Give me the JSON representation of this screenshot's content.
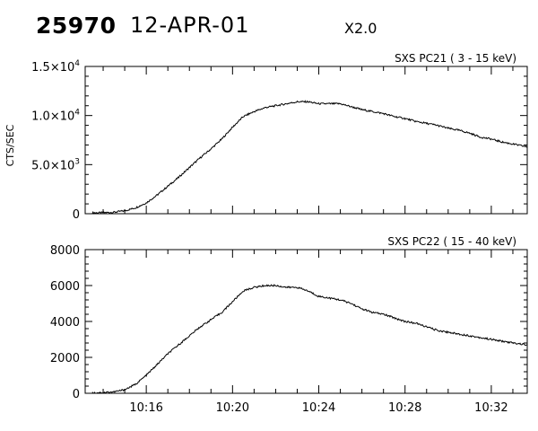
{
  "header": {
    "event_id": "25970",
    "date": "12-APR-01",
    "flare_class": "X2.0"
  },
  "chart_data": [
    {
      "type": "line",
      "title": "SXS PC21  (  3 - 15 keV)",
      "ylabel": "CTS/SEC",
      "xlabel": "",
      "xlim": [
        "10:13:10",
        "10:33:40"
      ],
      "ylim": [
        0,
        15000
      ],
      "y_ticks": [
        0,
        5000,
        10000,
        15000
      ],
      "y_tick_labels": [
        {
          "mant": "0",
          "exp": ""
        },
        {
          "mant": "5.0×10",
          "exp": "3"
        },
        {
          "mant": "1.0×10",
          "exp": "4"
        },
        {
          "mant": "1.5×10",
          "exp": "4"
        }
      ],
      "x_ticks": [
        "10:16",
        "10:20",
        "10:24",
        "10:28",
        "10:32"
      ],
      "x_tick_labels": [],
      "grid": false,
      "x": [
        "10:13:30",
        "10:14:00",
        "10:14:30",
        "10:15:00",
        "10:15:30",
        "10:16:00",
        "10:16:30",
        "10:17:00",
        "10:17:30",
        "10:18:00",
        "10:18:30",
        "10:19:00",
        "10:19:30",
        "10:20:00",
        "10:20:30",
        "10:21:00",
        "10:21:30",
        "10:22:00",
        "10:22:30",
        "10:23:00",
        "10:23:30",
        "10:24:00",
        "10:24:30",
        "10:25:00",
        "10:25:30",
        "10:26:00",
        "10:26:30",
        "10:27:00",
        "10:27:30",
        "10:28:00",
        "10:28:30",
        "10:29:00",
        "10:29:30",
        "10:30:00",
        "10:30:30",
        "10:31:00",
        "10:31:30",
        "10:32:00",
        "10:32:30",
        "10:33:00",
        "10:33:40"
      ],
      "values": [
        100,
        100,
        150,
        300,
        600,
        1100,
        1900,
        2800,
        3700,
        4700,
        5700,
        6600,
        7600,
        8800,
        9900,
        10400,
        10800,
        11000,
        11200,
        11400,
        11400,
        11200,
        11200,
        11200,
        10900,
        10600,
        10400,
        10200,
        9900,
        9700,
        9400,
        9200,
        9000,
        8700,
        8500,
        8200,
        7800,
        7600,
        7300,
        7100,
        6800
      ]
    },
    {
      "type": "line",
      "title": "SXS PC22  ( 15 - 40 keV)",
      "ylabel": "",
      "xlabel": "",
      "xlim": [
        "10:13:10",
        "10:33:40"
      ],
      "ylim": [
        0,
        8000
      ],
      "y_ticks": [
        0,
        2000,
        4000,
        6000,
        8000
      ],
      "y_tick_labels": [
        {
          "mant": "0",
          "exp": ""
        },
        {
          "mant": "2000",
          "exp": ""
        },
        {
          "mant": "4000",
          "exp": ""
        },
        {
          "mant": "6000",
          "exp": ""
        },
        {
          "mant": "8000",
          "exp": ""
        }
      ],
      "x_ticks": [
        "10:16",
        "10:20",
        "10:24",
        "10:28",
        "10:32"
      ],
      "x_tick_labels": [
        "10:16",
        "10:20",
        "10:24",
        "10:28",
        "10:32"
      ],
      "grid": false,
      "x": [
        "10:13:30",
        "10:14:00",
        "10:14:30",
        "10:15:00",
        "10:15:30",
        "10:16:00",
        "10:16:30",
        "10:17:00",
        "10:17:30",
        "10:18:00",
        "10:18:30",
        "10:19:00",
        "10:19:30",
        "10:20:00",
        "10:20:30",
        "10:21:00",
        "10:21:30",
        "10:22:00",
        "10:22:30",
        "10:23:00",
        "10:23:30",
        "10:24:00",
        "10:24:30",
        "10:25:00",
        "10:25:30",
        "10:26:00",
        "10:26:30",
        "10:27:00",
        "10:27:30",
        "10:28:00",
        "10:28:30",
        "10:29:00",
        "10:29:30",
        "10:30:00",
        "10:30:30",
        "10:31:00",
        "10:31:30",
        "10:32:00",
        "10:32:30",
        "10:33:00",
        "10:33:40"
      ],
      "values": [
        30,
        40,
        80,
        200,
        500,
        1000,
        1600,
        2200,
        2700,
        3200,
        3700,
        4100,
        4500,
        5100,
        5700,
        5900,
        6000,
        6000,
        5900,
        5900,
        5700,
        5400,
        5300,
        5200,
        5000,
        4700,
        4500,
        4400,
        4200,
        4000,
        3900,
        3700,
        3500,
        3400,
        3300,
        3200,
        3100,
        3000,
        2900,
        2800,
        2700
      ]
    }
  ]
}
